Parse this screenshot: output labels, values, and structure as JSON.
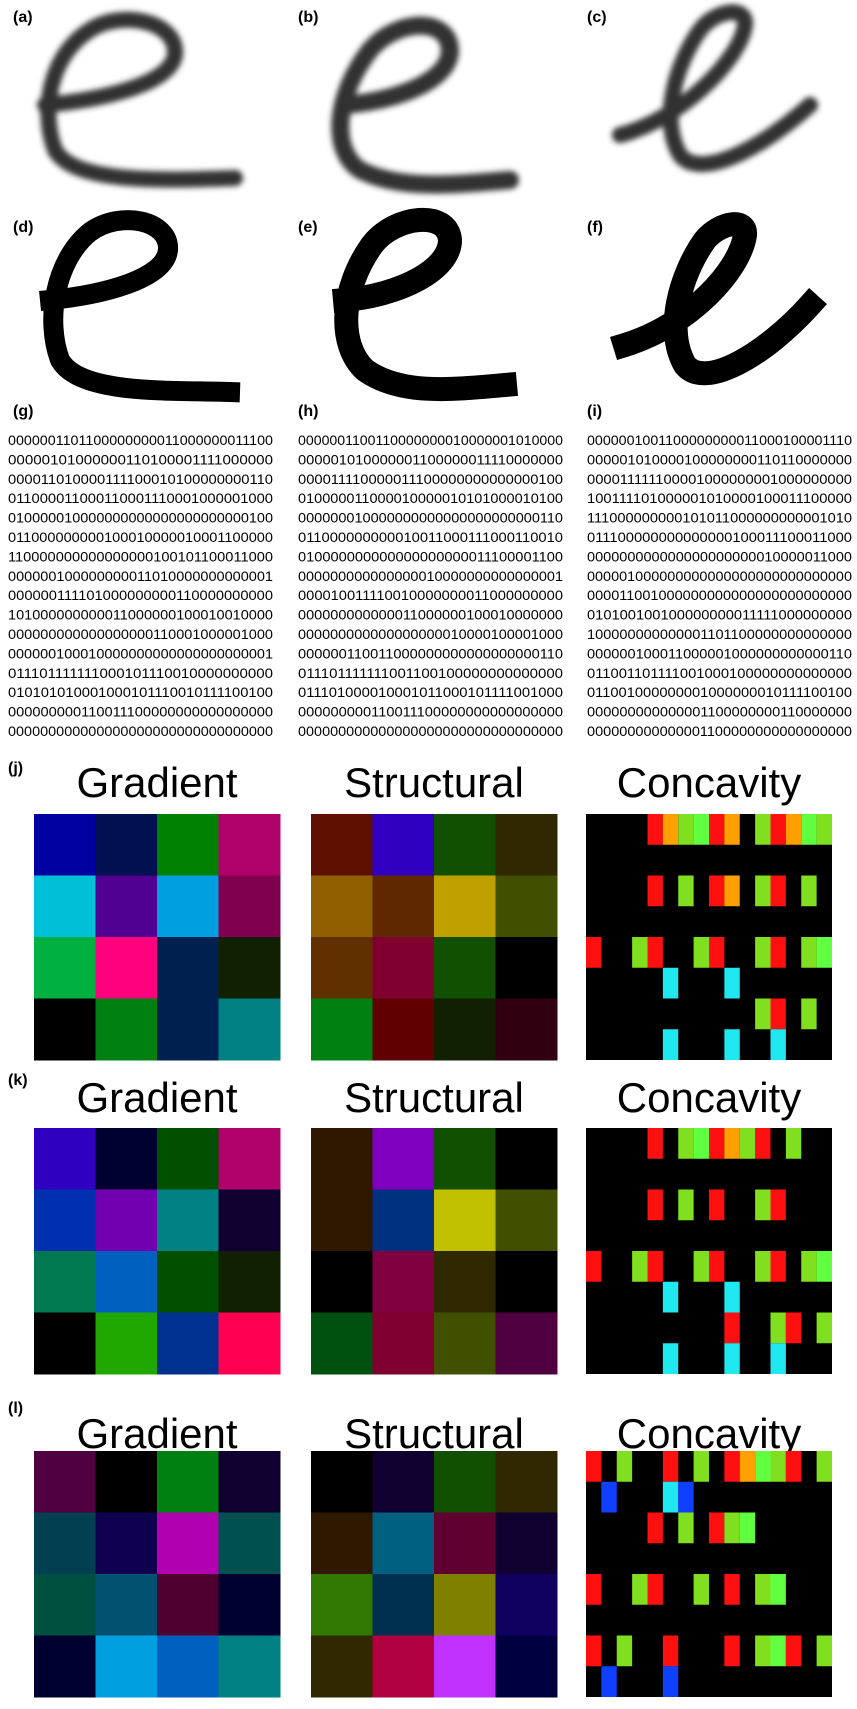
{
  "labels": [
    "(a)",
    "(b)",
    "(c)",
    "(d)",
    "(e)",
    "(f)",
    "(g)",
    "(h)",
    "(i)"
  ],
  "binary": [
    [
      "0000001101100000000011000000011100",
      "00000101000000110100001111000000",
      "000011010000111100010100000000110",
      "011000011000110001110001000001000",
      "010000010000000000000000000000100",
      "011000000000100010000010001100000",
      "110000000000000000100101100011000",
      "000000100000000011010000000000001",
      "000000111101000000000110000000000",
      "101000000000011000000100010010000",
      "000000000000000000110001000001000",
      "000000100010000000000000000000001",
      "011101111111000101110010000000000",
      "010101010001000101110010111100100",
      "000000000110011100000000000000000",
      "000000000000000000000000000000000"
    ],
    [
      "0000001100110000000010000001010000",
      "000001010000001100000011110000000",
      "000011110000011100000000000000100",
      "010000011000010000010101000010100",
      "000000010000000000000000000000110",
      "011000000000010011000111000110010",
      "010000000000000000000011100001100",
      "000000000000000010000000000000001",
      "000010011110010000000011000000000",
      "000000000000011000000100010000000",
      "000000000000000000010000100001000",
      "000000110011000000000000000000110",
      "011101111111001100100000000000000",
      "011101000010001011000101111001000",
      "000000000110011100000000000000000",
      "000000000000000000000000000000000"
    ],
    [
      "0000001001100000000011000100001110",
      "000001010000100000000110110000000",
      "000011111100001000000001000000000",
      "100111101000001010000100011100000",
      "111000000000101011000000000001010",
      "011100000000000000100011100011000",
      "000000000000000000000010000011000",
      "000001000000000000000000000000000",
      "000011001000000000000000000000000",
      "010100100100000000011111000000000",
      "100000000000001101100000000000000",
      "000000100011000001000000000000110",
      "011001101111001000100000000000000",
      "011001000000001000000010111100100",
      "000000000000001100000000110000000",
      "000000000000001100000000000000000"
    ]
  ],
  "panels": [
    {
      "label": "(j)",
      "titles": [
        "Gradient",
        "Structural",
        "Concavity"
      ]
    },
    {
      "label": "(k)",
      "titles": [
        "Gradient",
        "Structural",
        "Concavity"
      ]
    },
    {
      "label": "(l)",
      "titles": [
        "Gradient",
        "Structural",
        "Concavity"
      ]
    }
  ]
}
